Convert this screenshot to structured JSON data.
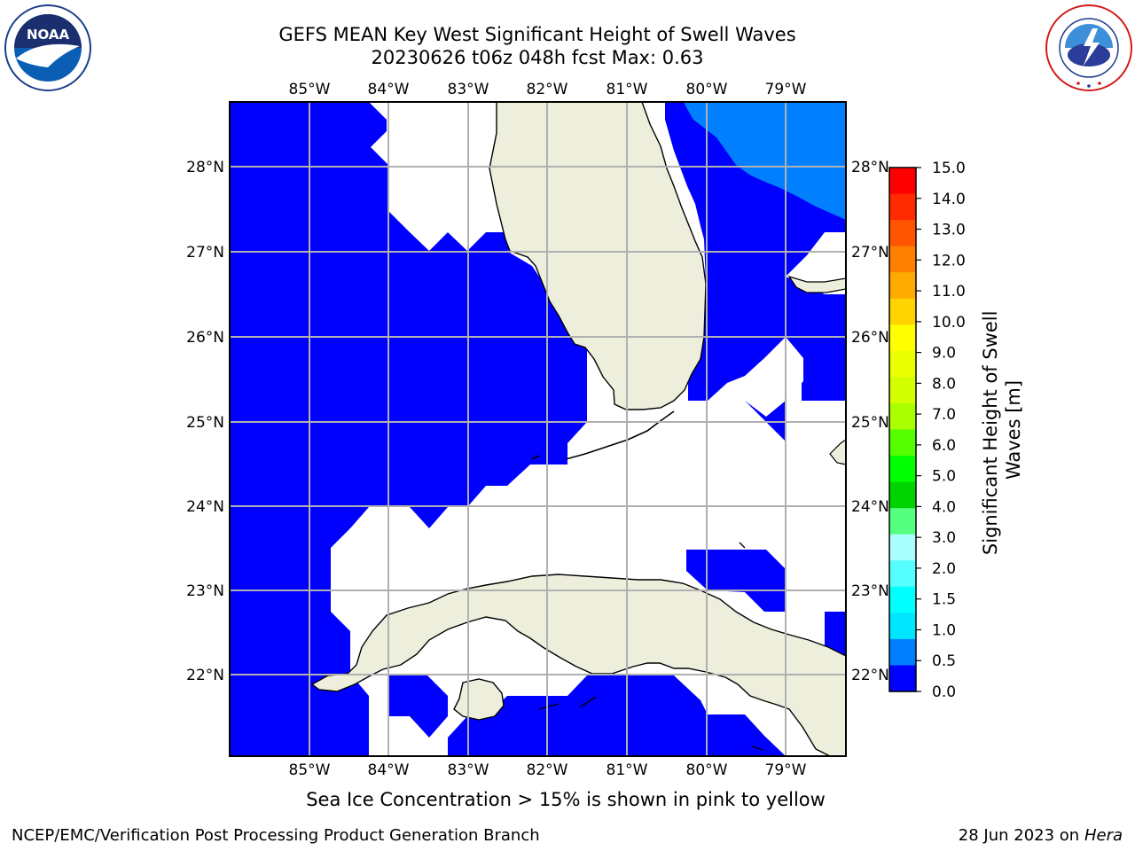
{
  "header": {
    "title_line1": "GEFS MEAN Key West Significant Height of Swell Waves",
    "title_line2": "20230626 t06z 048h fcst   Max: 0.63"
  },
  "logos": {
    "noaa": {
      "text": "NOAA",
      "ring_text": "NATIONAL OCEANIC AND ATMOSPHERIC ADMINISTRATION · U.S. DEPARTMENT OF COMMERCE"
    },
    "nws": {
      "ring_text": "NATIONAL WEATHER SERVICE"
    }
  },
  "map": {
    "lon_labels": [
      "85°W",
      "84°W",
      "83°W",
      "82°W",
      "81°W",
      "80°W",
      "79°W"
    ],
    "lat_labels": [
      "28°N",
      "27°N",
      "26°N",
      "25°N",
      "24°N",
      "23°N",
      "22°N"
    ],
    "colors": {
      "sea_low": "#0000ff",
      "sea_high": "#0080ff",
      "land": "#eeeedd",
      "coast": "#000000",
      "grid": "#b0b0b0",
      "no_data": "#ffffff"
    }
  },
  "colorbar": {
    "label": "Significant Height of Swell Waves [m]",
    "label_line1": "Significant Height of Swell",
    "label_line2": "Waves [m]",
    "ticks": [
      "15.0",
      "14.0",
      "13.0",
      "12.0",
      "11.0",
      "10.0",
      "9.0",
      "8.0",
      "7.0",
      "6.0",
      "5.0",
      "4.0",
      "3.0",
      "2.0",
      "1.5",
      "1.0",
      "0.5",
      "0.0"
    ],
    "colors": [
      "#ff0000",
      "#ff2a00",
      "#ff5500",
      "#ff8000",
      "#ffaa00",
      "#ffd400",
      "#ffff00",
      "#eaff00",
      "#d4ff00",
      "#aaff00",
      "#55ff00",
      "#00ff00",
      "#00d400",
      "#55ff80",
      "#aaffff",
      "#55ffff",
      "#00ffff",
      "#00e6ff",
      "#0080ff",
      "#0000ff"
    ],
    "colors_note": ""
  },
  "footer": {
    "note": "Sea Ice Concentration > 15% is shown in pink to yellow",
    "credit": "NCEP/EMC/Verification Post Processing Product Generation Branch",
    "date": "28 Jun 2023 on",
    "machine": "Hera"
  }
}
